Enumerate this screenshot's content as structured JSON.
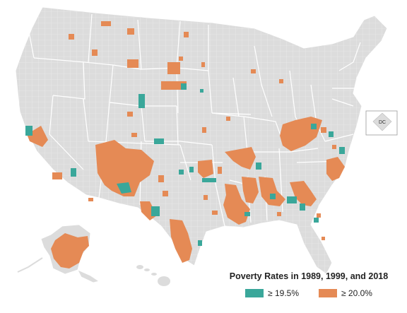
{
  "map": {
    "dc_label": "DC",
    "colors": {
      "land": "#dcdcdc",
      "county_line": "#eeeeee",
      "state_line": "#ffffff",
      "teal": "#3aa79a",
      "orange": "#e58a55"
    }
  },
  "legend": {
    "title": "Poverty Rates in 1989, 1999, and 2018",
    "items": [
      {
        "label": "≥ 19.5%",
        "color": "#3aa79a"
      },
      {
        "label": "≥ 20.0%",
        "color": "#e58a55"
      }
    ]
  }
}
